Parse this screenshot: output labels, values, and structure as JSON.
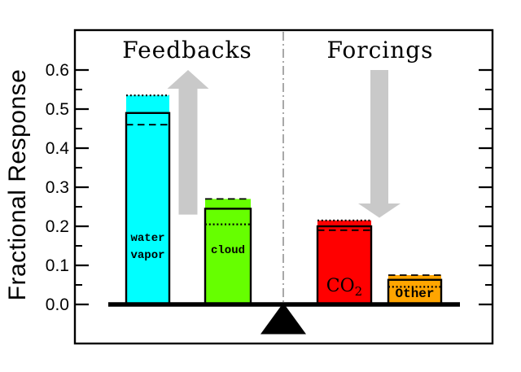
{
  "chart_data": {
    "type": "bar",
    "ylabel": "Fractional Response",
    "section_titles": [
      "Feedbacks",
      "Forcings"
    ],
    "ylim": [
      -0.1,
      0.7
    ],
    "ytick_major": [
      0.0,
      0.1,
      0.2,
      0.3,
      0.4,
      0.5,
      0.6
    ],
    "ytick_labels": [
      "0.0",
      "0.1",
      "0.2",
      "0.3",
      "0.4",
      "0.5",
      "0.6"
    ],
    "ytick_minor": [
      0.05,
      0.15,
      0.25,
      0.35,
      0.45,
      0.55
    ],
    "grid": false,
    "background": "#ffffff",
    "axis_color": "#000000",
    "bars": [
      {
        "id": "water-vapor",
        "group": "Feedbacks",
        "label_lines": [
          "water",
          "vapor"
        ],
        "color": "#00ffff",
        "solid": 0.49,
        "dashed": 0.46,
        "dotted": 0.535
      },
      {
        "id": "cloud",
        "group": "Feedbacks",
        "label_lines": [
          "cloud"
        ],
        "color": "#66ff00",
        "solid": 0.245,
        "dashed": 0.27,
        "dotted": 0.205
      },
      {
        "id": "co2",
        "group": "Forcings",
        "label_lines": [
          "CO"
        ],
        "label_sub": "2",
        "color": "#ff0000",
        "solid": 0.2,
        "dashed": 0.19,
        "dotted": 0.215
      },
      {
        "id": "other",
        "group": "Forcings",
        "label_lines": [
          "Other"
        ],
        "color": "#ffa500",
        "solid": 0.063,
        "dashed": 0.075,
        "dotted": 0.045
      }
    ],
    "annotations": {
      "up_arrow": {
        "direction": "up",
        "group": "Feedbacks",
        "color": "#c9c9c9",
        "from": 0.23,
        "to": 0.6
      },
      "down_arrow": {
        "direction": "down",
        "group": "Forcings",
        "color": "#c9c9c9",
        "from": 0.6,
        "to": 0.222
      },
      "divider": {
        "style": "dash-dot",
        "color": "#9a9a9a"
      },
      "fulcrum": {
        "shape": "triangle",
        "color": "#000000"
      }
    }
  }
}
